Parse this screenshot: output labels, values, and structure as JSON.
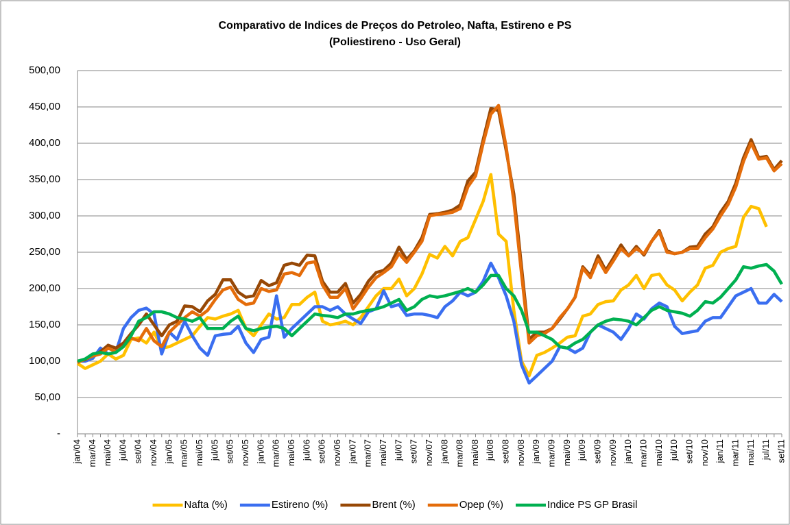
{
  "chart_data": {
    "type": "line",
    "title": "Comparativo de Indices de Preços do Petroleo, Nafta, Estireno e PS (Poliestireno - Uso Geral)",
    "categories": [
      "jan/04",
      null,
      "mar/04",
      null,
      "mai/04",
      null,
      "jul/04",
      null,
      "set/04",
      null,
      "nov/04",
      null,
      "jan/05",
      null,
      "mar/05",
      null,
      "mai/05",
      null,
      "jul/05",
      null,
      "set/05",
      null,
      "nov/05",
      null,
      "jan/06",
      null,
      "mar/06",
      null,
      "mai/06",
      null,
      "jul/06",
      null,
      "set/06",
      null,
      "nov/06",
      null,
      "jan/07",
      null,
      "mar/07",
      null,
      "mai/07",
      null,
      "jul/07",
      null,
      "set/07",
      null,
      "nov/07",
      null,
      "jan/08",
      null,
      "mar/08",
      null,
      "mai/08",
      null,
      "jul/08",
      null,
      "set/08",
      null,
      "nov/08",
      null,
      "jan/09",
      null,
      "mar/09",
      null,
      "mai/09",
      null,
      "jul/09",
      null,
      "set/09",
      null,
      "nov/09",
      null,
      "jan/10",
      null,
      "mar/10",
      null,
      "mai/10",
      null,
      "jul/10",
      null,
      "set/10",
      null,
      "nov/10",
      null,
      "jan/11",
      null,
      "mar/11",
      null,
      "mai/11",
      null,
      "jul/11",
      null,
      "set/11"
    ],
    "series": [
      {
        "name": "Nafta (%)",
        "color": "#ffc000",
        "values": [
          97,
          90,
          95,
          100,
          110,
          103,
          108,
          130,
          132,
          125,
          140,
          118,
          120,
          125,
          130,
          135,
          148,
          160,
          158,
          162,
          165,
          170,
          145,
          135,
          150,
          165,
          158,
          160,
          178,
          178,
          188,
          195,
          155,
          150,
          152,
          155,
          150,
          160,
          175,
          190,
          200,
          200,
          213,
          190,
          200,
          220,
          247,
          242,
          258,
          245,
          265,
          270,
          295,
          320,
          357,
          275,
          265,
          170,
          100,
          80,
          108,
          112,
          118,
          125,
          133,
          135,
          162,
          165,
          178,
          182,
          183,
          198,
          205,
          218,
          200,
          218,
          220,
          205,
          198,
          183,
          195,
          205,
          228,
          232,
          250,
          255,
          258,
          298,
          313,
          310,
          285,
          null,
          null
        ]
      },
      {
        "name": "Estireno (%)",
        "color": "#3a6ef0",
        "values": [
          100,
          100,
          104,
          118,
          110,
          112,
          145,
          160,
          170,
          173,
          165,
          110,
          140,
          130,
          155,
          135,
          118,
          108,
          135,
          137,
          138,
          148,
          125,
          112,
          130,
          133,
          190,
          133,
          145,
          155,
          165,
          175,
          175,
          170,
          175,
          165,
          158,
          152,
          168,
          172,
          197,
          175,
          178,
          163,
          165,
          165,
          163,
          160,
          175,
          183,
          195,
          190,
          195,
          210,
          235,
          215,
          190,
          155,
          95,
          70,
          80,
          90,
          100,
          120,
          118,
          112,
          118,
          140,
          150,
          145,
          140,
          130,
          145,
          165,
          158,
          172,
          180,
          175,
          148,
          138,
          140,
          142,
          155,
          160,
          160,
          175,
          190,
          195,
          200,
          180,
          180,
          192,
          182
        ]
      },
      {
        "name": "Brent (%)",
        "color": "#974806",
        "values": [
          100,
          102,
          108,
          113,
          122,
          118,
          125,
          138,
          150,
          165,
          150,
          135,
          150,
          155,
          176,
          175,
          168,
          183,
          192,
          212,
          212,
          195,
          188,
          190,
          211,
          204,
          208,
          232,
          235,
          232,
          246,
          245,
          210,
          195,
          195,
          207,
          180,
          192,
          210,
          222,
          225,
          235,
          257,
          240,
          252,
          270,
          302,
          303,
          305,
          308,
          315,
          348,
          360,
          405,
          448,
          445,
          390,
          330,
          230,
          130,
          140,
          140,
          145,
          158,
          172,
          188,
          230,
          218,
          245,
          225,
          242,
          260,
          245,
          258,
          246,
          265,
          280,
          252,
          248,
          250,
          257,
          258,
          275,
          285,
          305,
          320,
          345,
          380,
          405,
          380,
          382,
          364,
          376
        ]
      },
      {
        "name": "Opep (%)",
        "color": "#e46c0a",
        "values": [
          98,
          103,
          107,
          110,
          118,
          113,
          120,
          132,
          128,
          145,
          128,
          120,
          140,
          150,
          160,
          168,
          162,
          170,
          185,
          198,
          202,
          185,
          178,
          180,
          200,
          196,
          198,
          220,
          222,
          218,
          235,
          237,
          205,
          188,
          188,
          200,
          172,
          186,
          202,
          215,
          222,
          230,
          248,
          236,
          250,
          265,
          300,
          302,
          303,
          305,
          310,
          340,
          355,
          400,
          440,
          452,
          395,
          320,
          220,
          125,
          135,
          138,
          145,
          160,
          172,
          188,
          228,
          215,
          240,
          222,
          238,
          255,
          245,
          255,
          248,
          265,
          278,
          250,
          248,
          250,
          255,
          255,
          270,
          282,
          300,
          316,
          340,
          375,
          400,
          378,
          380,
          362,
          372
        ]
      },
      {
        "name": "Indice PS GP Brasil",
        "color": "#00b050",
        "values": [
          100,
          103,
          110,
          112,
          110,
          112,
          120,
          135,
          155,
          160,
          168,
          168,
          165,
          160,
          158,
          155,
          160,
          145,
          145,
          145,
          155,
          162,
          145,
          142,
          145,
          147,
          148,
          145,
          135,
          145,
          155,
          165,
          163,
          162,
          160,
          165,
          165,
          168,
          170,
          172,
          175,
          180,
          185,
          170,
          175,
          185,
          190,
          188,
          190,
          193,
          196,
          200,
          195,
          205,
          218,
          218,
          200,
          190,
          170,
          140,
          140,
          135,
          130,
          120,
          118,
          125,
          130,
          140,
          150,
          155,
          158,
          157,
          155,
          150,
          160,
          170,
          175,
          170,
          168,
          166,
          162,
          170,
          182,
          180,
          188,
          200,
          212,
          230,
          228,
          231,
          233,
          224,
          206
        ]
      }
    ],
    "ylim": [
      0,
      500
    ],
    "yticks": [
      {
        "value": 0,
        "label": "-"
      },
      {
        "value": 50,
        "label": "50,00"
      },
      {
        "value": 100,
        "label": "100,00"
      },
      {
        "value": 150,
        "label": "150,00"
      },
      {
        "value": 200,
        "label": "200,00"
      },
      {
        "value": 250,
        "label": "250,00"
      },
      {
        "value": 300,
        "label": "300,00"
      },
      {
        "value": 350,
        "label": "350,00"
      },
      {
        "value": 400,
        "label": "400,00"
      },
      {
        "value": 450,
        "label": "450,00"
      },
      {
        "value": 500,
        "label": "500,00"
      }
    ],
    "grid": true,
    "legend": "bottom"
  }
}
